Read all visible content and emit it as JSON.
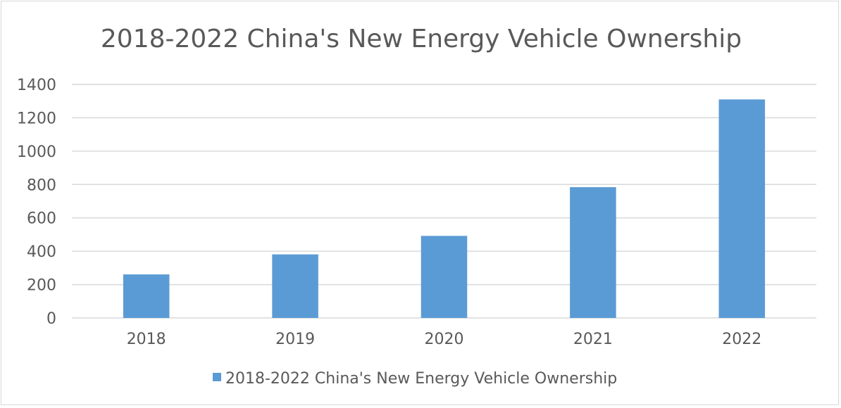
{
  "chart_data": {
    "type": "bar",
    "title": "2018-2022 China's New Energy Vehicle Ownership",
    "categories": [
      "2018",
      "2019",
      "2020",
      "2021",
      "2022"
    ],
    "series": [
      {
        "name": "2018-2022 China's New Energy Vehicle Ownership",
        "values": [
          261,
          381,
          492,
          784,
          1310
        ],
        "color": "#5b9bd5"
      }
    ],
    "ylim": [
      0,
      1400
    ],
    "yticks": [
      0,
      200,
      400,
      600,
      800,
      1000,
      1200,
      1400
    ],
    "grid": true,
    "legend": "bottom",
    "xlabel": "",
    "ylabel": ""
  }
}
